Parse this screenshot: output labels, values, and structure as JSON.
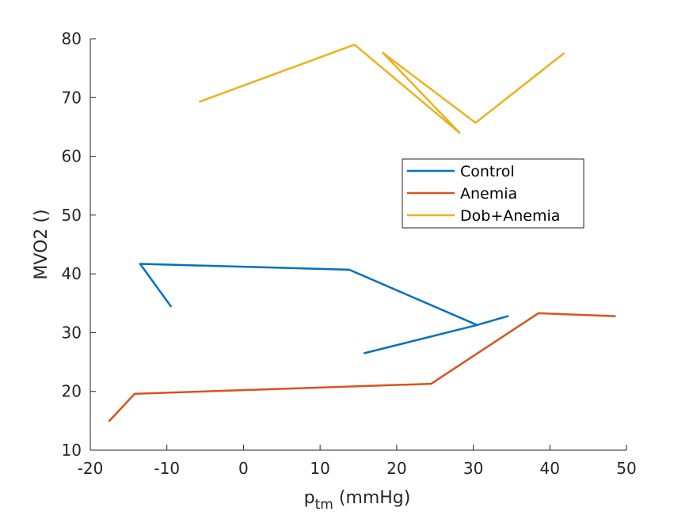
{
  "chart_data": {
    "type": "line",
    "xlabel_base": "p",
    "xlabel_sub": "tm",
    "xlabel_unit": " (mmHg)",
    "ylabel": "MVO2 ()",
    "xlim": [
      -20,
      50
    ],
    "ylim": [
      10,
      80
    ],
    "xticks": [
      -20,
      -10,
      0,
      10,
      20,
      30,
      40,
      50
    ],
    "yticks": [
      10,
      20,
      30,
      40,
      50,
      60,
      70,
      80
    ],
    "grid": false,
    "legend_position": "center-right",
    "series": [
      {
        "name": "Control",
        "color": "#0072BD",
        "x": [
          -9.5,
          -13.5,
          13.8,
          30.5,
          34.5,
          30.5,
          15.8
        ],
        "y": [
          34.5,
          41.7,
          40.7,
          31.3,
          32.8,
          31.3,
          26.5
        ]
      },
      {
        "name": "Anemia",
        "color": "#D95319",
        "x": [
          -17.5,
          -14.2,
          24.5,
          38.5,
          48.5
        ],
        "y": [
          15.0,
          19.6,
          21.3,
          33.3,
          32.8
        ]
      },
      {
        "name": "Dob+Anemia",
        "color": "#EDB120",
        "x": [
          -5.7,
          14.5,
          28.2,
          18.2,
          30.3,
          41.8
        ],
        "y": [
          69.3,
          79.0,
          64.0,
          77.6,
          65.7,
          77.5
        ]
      }
    ]
  }
}
